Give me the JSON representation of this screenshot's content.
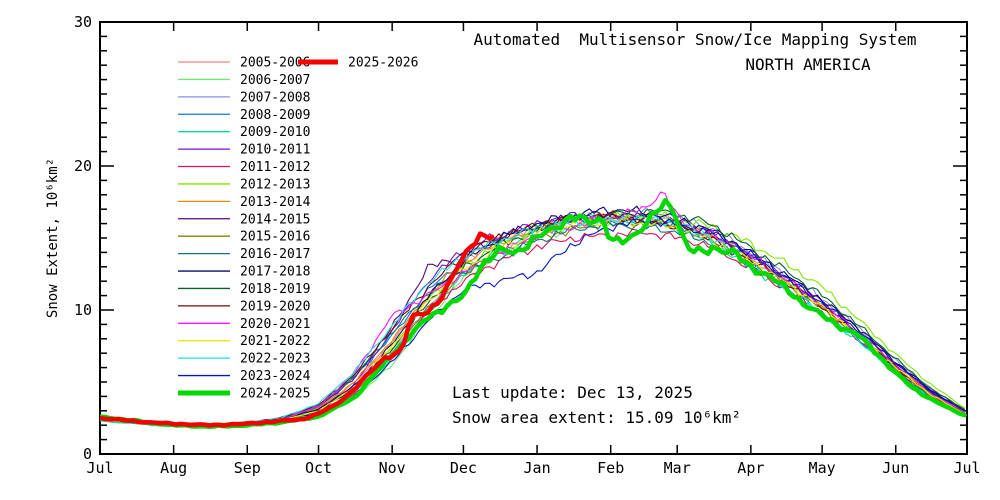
{
  "title_line1": "Automated  Multisensor Snow/Ice Mapping System",
  "title_line2": "NORTH AMERICA",
  "info": {
    "last_update": "Last update: Dec 13, 2025",
    "snow_area_extent": "Snow area extent: 15.09 10⁶km²"
  },
  "chart_data": {
    "type": "line",
    "title": "Automated Multisensor Snow/Ice Mapping System - North America",
    "xlabel": "",
    "ylabel": "Snow Extent, 10⁶km²",
    "ylim": [
      0,
      30
    ],
    "y_major_ticks": [
      0,
      10,
      20,
      30
    ],
    "y_minor_step": 1,
    "x_range_days": [
      0,
      365
    ],
    "x_tick_days": [
      0,
      31,
      62,
      92,
      123,
      153,
      184,
      215,
      243,
      274,
      304,
      335,
      365
    ],
    "x_tick_labels": [
      "Jul",
      "Aug",
      "Sep",
      "Oct",
      "Nov",
      "Dec",
      "Jan",
      "Feb",
      "Mar",
      "Apr",
      "May",
      "Jun",
      "Jul"
    ],
    "grid": false,
    "legend_position": "upper left",
    "control_days": [
      0,
      15,
      31,
      46,
      62,
      76,
      92,
      107,
      123,
      138,
      153,
      168,
      184,
      199,
      215,
      229,
      237,
      243,
      251,
      258,
      266,
      274,
      289,
      304,
      319,
      335,
      350,
      364
    ],
    "series": [
      {
        "name": "2005-2006",
        "color": "#F08080",
        "lw": 1.1,
        "values": [
          2.5,
          2.2,
          2.0,
          2.0,
          2.1,
          2.4,
          3.2,
          4.9,
          7.8,
          10.9,
          13.2,
          14.8,
          15.6,
          16.0,
          16.6,
          16.2,
          16.5,
          15.8,
          15.4,
          15.0,
          14.2,
          13.4,
          12.0,
          10.3,
          8.4,
          6.1,
          4.2,
          2.9
        ]
      },
      {
        "name": "2006-2007",
        "color": "#70E870",
        "lw": 1.1,
        "values": [
          2.3,
          2.1,
          1.9,
          1.9,
          2.0,
          2.2,
          2.6,
          3.8,
          6.2,
          9.4,
          12.2,
          13.8,
          15.0,
          15.7,
          16.1,
          16.5,
          16.2,
          16.0,
          15.6,
          15.1,
          14.4,
          13.5,
          11.9,
          10.2,
          8.3,
          6.0,
          4.1,
          2.8
        ]
      },
      {
        "name": "2007-2008",
        "color": "#8890E8",
        "lw": 1.1,
        "values": [
          2.4,
          2.2,
          2.0,
          2.0,
          2.1,
          2.3,
          2.8,
          4.2,
          7.0,
          10.2,
          12.6,
          14.0,
          15.2,
          16.2,
          16.0,
          16.8,
          16.6,
          16.4,
          16.0,
          15.6,
          14.8,
          14.0,
          12.4,
          10.8,
          8.8,
          6.5,
          4.5,
          3.1
        ]
      },
      {
        "name": "2008-2009",
        "color": "#0878E8",
        "lw": 1.1,
        "values": [
          2.5,
          2.3,
          2.1,
          2.0,
          2.2,
          2.5,
          3.4,
          5.3,
          8.2,
          11.3,
          13.6,
          14.9,
          15.8,
          16.3,
          16.2,
          16.0,
          16.1,
          15.8,
          15.5,
          15.2,
          14.5,
          13.8,
          12.1,
          10.4,
          8.5,
          6.2,
          4.3,
          3.0
        ]
      },
      {
        "name": "2009-2010",
        "color": "#00E090",
        "lw": 1.1,
        "values": [
          2.3,
          2.1,
          1.9,
          1.9,
          2.0,
          2.2,
          2.7,
          4.0,
          6.6,
          9.8,
          12.4,
          14.2,
          15.6,
          16.4,
          16.6,
          16.2,
          16.0,
          15.6,
          15.1,
          14.6,
          13.8,
          13.0,
          11.4,
          9.7,
          7.9,
          5.7,
          3.9,
          2.7
        ]
      },
      {
        "name": "2010-2011",
        "color": "#7A10D0",
        "lw": 1.1,
        "values": [
          2.4,
          2.2,
          2.0,
          2.0,
          2.1,
          2.4,
          3.1,
          4.8,
          8.6,
          12.0,
          14.2,
          15.2,
          16.0,
          16.6,
          16.4,
          16.6,
          16.4,
          16.2,
          15.8,
          15.4,
          14.6,
          13.9,
          12.3,
          10.6,
          8.7,
          6.3,
          4.4,
          3.0
        ]
      },
      {
        "name": "2011-2012",
        "color": "#E01060",
        "lw": 1.1,
        "values": [
          2.4,
          2.2,
          2.0,
          2.0,
          2.1,
          2.3,
          2.8,
          4.1,
          6.8,
          9.9,
          12.0,
          13.4,
          14.4,
          15.0,
          15.2,
          15.4,
          15.2,
          15.0,
          14.7,
          14.4,
          13.6,
          12.9,
          11.4,
          9.8,
          8.0,
          5.8,
          4.0,
          2.8
        ]
      },
      {
        "name": "2012-2013",
        "color": "#80E800",
        "lw": 1.1,
        "values": [
          2.4,
          2.2,
          2.0,
          2.0,
          2.1,
          2.4,
          3.0,
          4.6,
          7.4,
          10.8,
          13.0,
          14.6,
          15.7,
          16.2,
          16.4,
          16.6,
          16.5,
          16.3,
          16.0,
          15.8,
          15.2,
          14.6,
          13.2,
          11.6,
          9.4,
          6.9,
          4.8,
          3.2
        ]
      },
      {
        "name": "2013-2014",
        "color": "#E88800",
        "lw": 1.1,
        "values": [
          2.5,
          2.3,
          2.1,
          2.0,
          2.1,
          2.4,
          3.2,
          5.0,
          7.9,
          11.0,
          13.3,
          14.7,
          15.6,
          16.4,
          16.6,
          16.3,
          16.1,
          15.9,
          15.5,
          15.1,
          14.3,
          13.6,
          12.0,
          10.3,
          8.4,
          6.1,
          4.2,
          2.9
        ]
      },
      {
        "name": "2014-2015",
        "color": "#580878",
        "lw": 1.1,
        "values": [
          2.4,
          2.2,
          2.0,
          2.0,
          2.1,
          2.4,
          3.3,
          5.2,
          8.8,
          12.9,
          13.9,
          15.0,
          15.9,
          16.5,
          16.7,
          16.4,
          16.2,
          16.0,
          15.6,
          15.2,
          14.4,
          13.7,
          12.1,
          10.4,
          8.5,
          6.2,
          4.3,
          3.0
        ]
      },
      {
        "name": "2015-2016",
        "color": "#888000",
        "lw": 1.1,
        "values": [
          2.4,
          2.2,
          2.0,
          2.0,
          2.1,
          2.3,
          2.9,
          4.3,
          7.0,
          10.1,
          12.5,
          13.9,
          15.0,
          15.6,
          15.9,
          16.1,
          15.9,
          15.7,
          15.3,
          14.9,
          14.1,
          13.3,
          11.8,
          10.1,
          8.2,
          5.9,
          4.0,
          2.8
        ]
      },
      {
        "name": "2016-2017",
        "color": "#0A7878",
        "lw": 1.1,
        "values": [
          2.4,
          2.2,
          2.0,
          2.0,
          2.1,
          2.4,
          3.3,
          5.4,
          8.4,
          11.2,
          12.8,
          13.6,
          14.8,
          15.6,
          16.0,
          15.8,
          15.6,
          15.4,
          15.0,
          14.6,
          13.9,
          13.1,
          11.5,
          9.8,
          8.0,
          5.8,
          3.9,
          2.7
        ]
      },
      {
        "name": "2017-2018",
        "color": "#0A0A70",
        "lw": 1.1,
        "values": [
          2.4,
          2.2,
          2.0,
          2.0,
          2.1,
          2.4,
          3.1,
          4.7,
          7.6,
          10.9,
          13.4,
          15.0,
          16.0,
          16.6,
          17.0,
          16.8,
          16.6,
          16.3,
          15.9,
          15.5,
          14.8,
          14.0,
          12.4,
          10.7,
          8.8,
          6.4,
          4.4,
          3.0
        ]
      },
      {
        "name": "2018-2019",
        "color": "#086028",
        "lw": 1.1,
        "values": [
          2.4,
          2.2,
          2.0,
          2.0,
          2.1,
          2.3,
          3.0,
          4.5,
          7.3,
          10.5,
          12.9,
          14.5,
          15.5,
          16.2,
          16.6,
          16.9,
          16.8,
          16.6,
          16.3,
          15.9,
          15.1,
          14.3,
          12.7,
          11.0,
          9.0,
          6.6,
          4.5,
          3.1
        ]
      },
      {
        "name": "2019-2020",
        "color": "#780800",
        "lw": 1.1,
        "values": [
          2.5,
          2.3,
          2.1,
          2.1,
          2.2,
          2.5,
          3.4,
          5.5,
          8.7,
          11.6,
          13.8,
          15.1,
          15.9,
          16.4,
          16.5,
          16.2,
          16.0,
          15.8,
          15.4,
          15.0,
          14.2,
          13.5,
          11.9,
          10.2,
          8.3,
          6.0,
          4.1,
          2.9
        ]
      },
      {
        "name": "2020-2021",
        "color": "#F818F8",
        "lw": 1.1,
        "values": [
          2.4,
          2.2,
          2.0,
          2.0,
          2.1,
          2.4,
          3.3,
          5.6,
          9.6,
          11.0,
          12.6,
          14.0,
          15.2,
          15.8,
          16.4,
          17.0,
          18.3,
          16.4,
          15.6,
          15.2,
          14.4,
          13.7,
          12.1,
          10.4,
          8.5,
          6.2,
          4.2,
          2.9
        ]
      },
      {
        "name": "2021-2022",
        "color": "#E8E800",
        "lw": 1.1,
        "values": [
          2.4,
          2.2,
          2.0,
          2.0,
          2.1,
          2.3,
          3.0,
          4.6,
          7.5,
          10.6,
          12.8,
          14.3,
          15.3,
          16.0,
          16.2,
          16.0,
          15.9,
          15.7,
          15.3,
          14.8,
          14.1,
          13.4,
          11.9,
          10.2,
          8.3,
          6.0,
          4.1,
          2.8
        ]
      },
      {
        "name": "2022-2023",
        "color": "#18E0F0",
        "lw": 1.1,
        "values": [
          2.5,
          2.3,
          2.1,
          2.0,
          2.2,
          2.5,
          3.5,
          5.7,
          8.9,
          11.9,
          13.7,
          14.8,
          15.7,
          16.1,
          16.2,
          16.4,
          16.2,
          16.0,
          15.5,
          15.0,
          14.0,
          13.2,
          11.5,
          9.8,
          7.9,
          5.7,
          3.8,
          2.6
        ]
      },
      {
        "name": "2023-2024",
        "color": "#0818C0",
        "lw": 1.1,
        "values": [
          2.4,
          2.2,
          2.0,
          2.0,
          2.1,
          2.3,
          2.8,
          4.0,
          6.4,
          9.2,
          11.4,
          12.0,
          12.6,
          14.6,
          15.8,
          16.2,
          16.1,
          15.9,
          15.6,
          15.3,
          14.6,
          13.8,
          12.2,
          10.5,
          8.6,
          6.3,
          4.3,
          3.0
        ]
      },
      {
        "name": "2024-2025",
        "color": "#00D800",
        "lw": 4.5,
        "days": [
          0,
          15,
          31,
          46,
          62,
          76,
          92,
          107,
          123,
          138,
          153,
          160,
          168,
          176,
          184,
          192,
          199,
          206,
          211,
          215,
          219,
          224,
          229,
          234,
          238,
          241,
          245,
          248,
          254,
          258,
          266,
          274,
          281,
          289,
          296,
          304,
          311,
          319,
          327,
          335,
          342,
          350,
          357,
          364
        ],
        "values": [
          2.6,
          2.3,
          2.0,
          1.9,
          2.0,
          2.2,
          2.6,
          3.9,
          6.9,
          9.5,
          10.9,
          13.0,
          14.1,
          14.1,
          15.0,
          15.8,
          16.5,
          16.1,
          16.5,
          14.9,
          14.6,
          15.1,
          15.9,
          16.8,
          17.3,
          17.2,
          15.3,
          14.3,
          13.9,
          14.3,
          14.1,
          12.9,
          12.5,
          11.4,
          10.5,
          9.6,
          8.9,
          8.3,
          7.0,
          5.6,
          4.6,
          3.8,
          3.2,
          2.7
        ]
      },
      {
        "name": "2025-2026",
        "color": "#F50000",
        "lw": 4.5,
        "legend_separate": true,
        "days": [
          0,
          10,
          20,
          31,
          46,
          62,
          76,
          85,
          92,
          100,
          107,
          115,
          120,
          127,
          131,
          135,
          139,
          145,
          149,
          153,
          156,
          159,
          162,
          165
        ],
        "values": [
          2.5,
          2.35,
          2.2,
          2.1,
          2.0,
          2.1,
          2.3,
          2.4,
          2.8,
          3.5,
          4.5,
          5.9,
          6.7,
          7.1,
          9.5,
          9.8,
          10.0,
          11.0,
          12.6,
          13.8,
          14.5,
          15.0,
          15.0,
          15.09
        ]
      }
    ]
  }
}
